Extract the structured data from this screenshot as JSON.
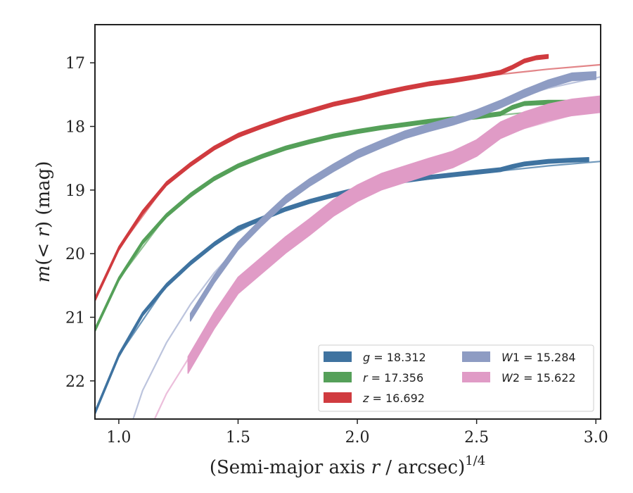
{
  "chart_data": {
    "type": "line",
    "xlabel": "(Semi-major axis r / arcsec)^1/4",
    "ylabel": "m(< r) (mag)",
    "xlim": [
      0.9,
      3.02
    ],
    "ylim": [
      22.6,
      16.4
    ],
    "y_inverted": true,
    "grid": false,
    "legend_position": "lower-right",
    "xticks": [
      1.0,
      1.5,
      2.0,
      2.5,
      3.0
    ],
    "xtick_labels": [
      "1.0",
      "1.5",
      "2.0",
      "2.5",
      "3.0"
    ],
    "yticks": [
      17,
      18,
      19,
      20,
      21,
      22
    ],
    "ytick_labels": [
      "17",
      "18",
      "19",
      "20",
      "21",
      "22"
    ],
    "series": [
      {
        "name": "g = 18.312",
        "color": "#3f73a0",
        "model_color": "#6f98bb",
        "band_halfwidth": 0.03,
        "data": [
          [
            0.9,
            22.5
          ],
          [
            1.0,
            21.6
          ],
          [
            1.1,
            20.95
          ],
          [
            1.2,
            20.5
          ],
          [
            1.3,
            20.15
          ],
          [
            1.4,
            19.85
          ],
          [
            1.5,
            19.6
          ],
          [
            1.6,
            19.45
          ],
          [
            1.7,
            19.3
          ],
          [
            1.8,
            19.18
          ],
          [
            1.9,
            19.08
          ],
          [
            2.0,
            18.99
          ],
          [
            2.1,
            18.92
          ],
          [
            2.2,
            18.85
          ],
          [
            2.3,
            18.8
          ],
          [
            2.4,
            18.76
          ],
          [
            2.5,
            18.72
          ],
          [
            2.6,
            18.68
          ],
          [
            2.65,
            18.63
          ],
          [
            2.7,
            18.59
          ],
          [
            2.8,
            18.55
          ],
          [
            2.9,
            18.53
          ],
          [
            2.97,
            18.52
          ]
        ],
        "model": [
          [
            0.9,
            22.5
          ],
          [
            1.0,
            21.6
          ],
          [
            1.2,
            20.5
          ],
          [
            1.4,
            19.85
          ],
          [
            1.6,
            19.45
          ],
          [
            1.8,
            19.18
          ],
          [
            2.0,
            19.0
          ],
          [
            2.2,
            18.87
          ],
          [
            2.4,
            18.78
          ],
          [
            2.6,
            18.7
          ],
          [
            2.8,
            18.62
          ],
          [
            3.02,
            18.55
          ]
        ]
      },
      {
        "name": "r = 17.356",
        "color": "#55a059",
        "model_color": "#8cc08f",
        "band_halfwidth": 0.03,
        "data": [
          [
            0.9,
            21.2
          ],
          [
            1.0,
            20.4
          ],
          [
            1.1,
            19.82
          ],
          [
            1.2,
            19.4
          ],
          [
            1.3,
            19.08
          ],
          [
            1.4,
            18.82
          ],
          [
            1.5,
            18.62
          ],
          [
            1.6,
            18.47
          ],
          [
            1.7,
            18.34
          ],
          [
            1.8,
            18.24
          ],
          [
            1.9,
            18.15
          ],
          [
            2.0,
            18.08
          ],
          [
            2.1,
            18.02
          ],
          [
            2.2,
            17.97
          ],
          [
            2.3,
            17.92
          ],
          [
            2.4,
            17.88
          ],
          [
            2.5,
            17.85
          ],
          [
            2.6,
            17.8
          ],
          [
            2.65,
            17.7
          ],
          [
            2.7,
            17.64
          ],
          [
            2.8,
            17.62
          ],
          [
            2.9,
            17.62
          ],
          [
            3.0,
            17.63
          ]
        ],
        "model": [
          [
            0.9,
            21.2
          ],
          [
            1.0,
            20.4
          ],
          [
            1.2,
            19.4
          ],
          [
            1.4,
            18.82
          ],
          [
            1.6,
            18.47
          ],
          [
            1.8,
            18.24
          ],
          [
            2.0,
            18.08
          ],
          [
            2.2,
            17.98
          ],
          [
            2.4,
            17.9
          ],
          [
            2.6,
            17.82
          ],
          [
            2.8,
            17.75
          ],
          [
            3.02,
            17.68
          ]
        ]
      },
      {
        "name": "z = 16.692",
        "color": "#d03b3f",
        "model_color": "#e28588",
        "band_halfwidth": 0.03,
        "data": [
          [
            0.9,
            20.72
          ],
          [
            1.0,
            19.92
          ],
          [
            1.1,
            19.35
          ],
          [
            1.2,
            18.9
          ],
          [
            1.3,
            18.6
          ],
          [
            1.4,
            18.34
          ],
          [
            1.5,
            18.14
          ],
          [
            1.6,
            18.0
          ],
          [
            1.7,
            17.87
          ],
          [
            1.8,
            17.76
          ],
          [
            1.9,
            17.65
          ],
          [
            2.0,
            17.57
          ],
          [
            2.1,
            17.48
          ],
          [
            2.2,
            17.4
          ],
          [
            2.3,
            17.33
          ],
          [
            2.4,
            17.28
          ],
          [
            2.5,
            17.22
          ],
          [
            2.6,
            17.15
          ],
          [
            2.65,
            17.07
          ],
          [
            2.7,
            16.97
          ],
          [
            2.75,
            16.92
          ],
          [
            2.8,
            16.9
          ]
        ],
        "model": [
          [
            0.9,
            20.72
          ],
          [
            1.0,
            19.92
          ],
          [
            1.2,
            18.9
          ],
          [
            1.4,
            18.34
          ],
          [
            1.6,
            18.0
          ],
          [
            1.8,
            17.75
          ],
          [
            2.0,
            17.55
          ],
          [
            2.2,
            17.4
          ],
          [
            2.4,
            17.28
          ],
          [
            2.6,
            17.18
          ],
          [
            2.8,
            17.1
          ],
          [
            3.02,
            17.03
          ]
        ]
      },
      {
        "name": "W1 = 15.284",
        "color": "#8e9cc3",
        "model_color": "#bcc4dd",
        "band_halfwidth": 0.06,
        "data": [
          [
            1.3,
            21.0
          ],
          [
            1.4,
            20.4
          ],
          [
            1.5,
            19.88
          ],
          [
            1.6,
            19.5
          ],
          [
            1.7,
            19.15
          ],
          [
            1.8,
            18.88
          ],
          [
            1.9,
            18.65
          ],
          [
            2.0,
            18.44
          ],
          [
            2.1,
            18.28
          ],
          [
            2.2,
            18.13
          ],
          [
            2.3,
            18.02
          ],
          [
            2.4,
            17.92
          ],
          [
            2.5,
            17.8
          ],
          [
            2.6,
            17.65
          ],
          [
            2.7,
            17.48
          ],
          [
            2.8,
            17.33
          ],
          [
            2.9,
            17.22
          ],
          [
            3.0,
            17.2
          ]
        ],
        "model": [
          [
            1.06,
            22.6
          ],
          [
            1.1,
            22.15
          ],
          [
            1.2,
            21.4
          ],
          [
            1.3,
            20.8
          ],
          [
            1.4,
            20.3
          ],
          [
            1.6,
            19.48
          ],
          [
            1.8,
            18.9
          ],
          [
            2.0,
            18.47
          ],
          [
            2.2,
            18.15
          ],
          [
            2.4,
            17.88
          ],
          [
            2.6,
            17.62
          ],
          [
            2.8,
            17.4
          ],
          [
            3.02,
            17.22
          ]
        ]
      },
      {
        "name": "W2 = 15.622",
        "color": "#e09bc6",
        "model_color": "#ecbedb",
        "band_halfwidth": 0.13,
        "data": [
          [
            1.29,
            21.75
          ],
          [
            1.4,
            21.05
          ],
          [
            1.5,
            20.5
          ],
          [
            1.6,
            20.18
          ],
          [
            1.7,
            19.86
          ],
          [
            1.8,
            19.58
          ],
          [
            1.9,
            19.28
          ],
          [
            2.0,
            19.05
          ],
          [
            2.1,
            18.87
          ],
          [
            2.2,
            18.75
          ],
          [
            2.3,
            18.63
          ],
          [
            2.4,
            18.52
          ],
          [
            2.5,
            18.34
          ],
          [
            2.6,
            18.06
          ],
          [
            2.7,
            17.9
          ],
          [
            2.8,
            17.78
          ],
          [
            2.9,
            17.7
          ],
          [
            3.02,
            17.65
          ]
        ],
        "model": [
          [
            1.15,
            22.6
          ],
          [
            1.2,
            22.2
          ],
          [
            1.3,
            21.6
          ],
          [
            1.5,
            20.6
          ],
          [
            1.7,
            19.9
          ],
          [
            1.9,
            19.35
          ],
          [
            2.1,
            18.92
          ],
          [
            2.3,
            18.6
          ],
          [
            2.5,
            18.3
          ],
          [
            2.7,
            18.03
          ],
          [
            2.9,
            17.82
          ],
          [
            3.02,
            17.7
          ]
        ]
      }
    ],
    "legend": {
      "columns": [
        [
          {
            "label_var": "g",
            "label_rest": " = 18.312",
            "color": "#3f73a0"
          },
          {
            "label_var": "r",
            "label_rest": " = 17.356",
            "color": "#55a059"
          },
          {
            "label_var": "z",
            "label_rest": " = 16.692",
            "color": "#d03b3f"
          }
        ],
        [
          {
            "label_var": "W",
            "label_rest": "1 = 15.284",
            "color": "#8e9cc3"
          },
          {
            "label_var": "W",
            "label_rest": "2 = 15.622",
            "color": "#e09bc6"
          }
        ]
      ]
    }
  },
  "axis_labels": {
    "x_prefix": "(Semi-major axis ",
    "x_var": "r",
    "x_suffix": " / arcsec)",
    "x_exp": "1/4",
    "y_var_m": "m",
    "y_paren_open": "(< ",
    "y_var_r": "r",
    "y_paren_close": ") (mag)"
  }
}
